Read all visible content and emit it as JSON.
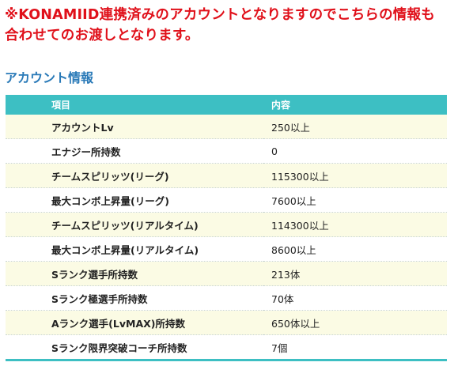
{
  "notice": {
    "line1": "※KONAMIID連携済みのアカウントとなりますのでこちらの情報も",
    "line2": "合わせてのお渡しとなります。"
  },
  "section_title": "アカウント情報",
  "table": {
    "headers": {
      "item": "項目",
      "content": "内容"
    },
    "rows": [
      {
        "label": "アカウントLv",
        "value": "250以上"
      },
      {
        "label": "エナジー所持数",
        "value": "0"
      },
      {
        "label": "チームスピリッツ(リーグ)",
        "value": "115300以上"
      },
      {
        "label": "最大コンボ上昇量(リーグ)",
        "value": "7600以上"
      },
      {
        "label": "チームスピリッツ(リアルタイム)",
        "value": "114300以上"
      },
      {
        "label": "最大コンボ上昇量(リアルタイム)",
        "value": "8600以上"
      },
      {
        "label": "Sランク選手所持数",
        "value": "213体"
      },
      {
        "label": "Sランク極選手所持数",
        "value": "70体"
      },
      {
        "label": "Aランク選手(LvMAX)所持数",
        "value": "650体以上"
      },
      {
        "label": "Sランク限界突破コーチ所持数",
        "value": "7個"
      }
    ]
  },
  "colors": {
    "notice_red": "#e0101a",
    "title_blue": "#2a7ab8",
    "header_teal": "#3dbfc3",
    "row_yellow": "#fbfbe4"
  }
}
